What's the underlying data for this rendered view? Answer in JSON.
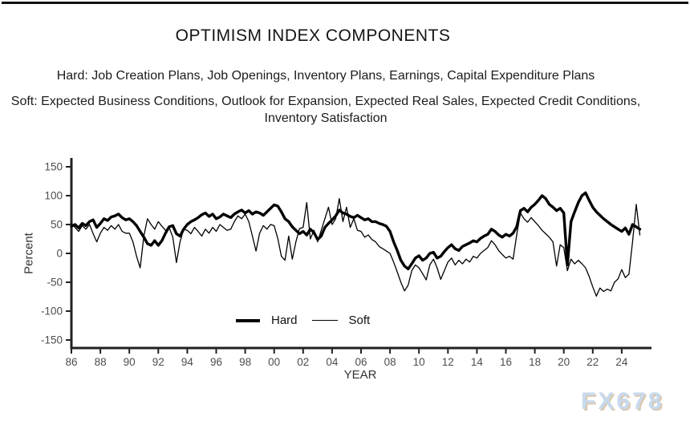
{
  "page": {
    "title": "OPTIMISM INDEX COMPONENTS",
    "subtitle_hard": "Hard: Job Creation Plans, Job Openings, Inventory Plans, Earnings, Capital Expenditure Plans",
    "subtitle_soft": "Soft: Expected Business Conditions, Outlook for Expansion, Expected Real Sales, Expected Credit Conditions, Inventory Satisfaction",
    "watermark": "FX678"
  },
  "chart_data": {
    "type": "line",
    "title": "OPTIMISM INDEX COMPONENTS",
    "xlabel": "YEAR",
    "ylabel": "Percent",
    "ylim": [
      -150,
      150
    ],
    "xlim": [
      1986,
      2025.6
    ],
    "grid": false,
    "legend_position": "bottom-center-inside",
    "line_color": "#000000",
    "axis_color": "#222222",
    "tick_label_color": "#4d4d4d",
    "y_ticks": [
      150,
      100,
      50,
      0,
      -50,
      -100,
      -150
    ],
    "x_ticks": [
      {
        "year": 1986,
        "label": "86"
      },
      {
        "year": 1988,
        "label": "88"
      },
      {
        "year": 1990,
        "label": "90"
      },
      {
        "year": 1992,
        "label": "92"
      },
      {
        "year": 1994,
        "label": "94"
      },
      {
        "year": 1996,
        "label": "96"
      },
      {
        "year": 1998,
        "label": "98"
      },
      {
        "year": 2000,
        "label": "00"
      },
      {
        "year": 2002,
        "label": "02"
      },
      {
        "year": 2004,
        "label": "04"
      },
      {
        "year": 2006,
        "label": "06"
      },
      {
        "year": 2008,
        "label": "08"
      },
      {
        "year": 2010,
        "label": "10"
      },
      {
        "year": 2012,
        "label": "12"
      },
      {
        "year": 2014,
        "label": "14"
      },
      {
        "year": 2016,
        "label": "16"
      },
      {
        "year": 2018,
        "label": "18"
      },
      {
        "year": 2020,
        "label": "20"
      },
      {
        "year": 2022,
        "label": "22"
      },
      {
        "year": 2024,
        "label": "24"
      }
    ],
    "x_start": 1986.0,
    "x_step": 0.25,
    "series": [
      {
        "name": "Soft",
        "stroke_width": 1.3,
        "values": [
          52,
          45,
          38,
          48,
          42,
          50,
          34,
          20,
          35,
          45,
          40,
          48,
          42,
          50,
          38,
          35,
          35,
          20,
          -5,
          -25,
          30,
          60,
          50,
          42,
          55,
          47,
          40,
          45,
          28,
          -16,
          20,
          42,
          40,
          34,
          45,
          38,
          30,
          42,
          35,
          45,
          38,
          50,
          45,
          40,
          42,
          55,
          65,
          60,
          68,
          55,
          30,
          4,
          35,
          48,
          42,
          50,
          48,
          26,
          -5,
          -12,
          30,
          -10,
          20,
          43,
          45,
          88,
          25,
          40,
          20,
          40,
          60,
          80,
          50,
          60,
          95,
          55,
          80,
          45,
          60,
          40,
          38,
          28,
          32,
          24,
          20,
          12,
          8,
          4,
          0,
          -15,
          -32,
          -50,
          -65,
          -55,
          -30,
          -20,
          -25,
          -35,
          -46,
          -20,
          -10,
          -25,
          -45,
          -30,
          -15,
          -8,
          -20,
          -12,
          -18,
          -10,
          -15,
          -5,
          -8,
          0,
          5,
          10,
          22,
          15,
          5,
          -2,
          -8,
          -5,
          -10,
          32,
          70,
          60,
          54,
          62,
          55,
          48,
          40,
          34,
          28,
          20,
          -22,
          15,
          10,
          -30,
          -10,
          -18,
          -12,
          -18,
          -25,
          -40,
          -58,
          -74,
          -60,
          -66,
          -62,
          -65,
          -50,
          -44,
          -28,
          -42,
          -36,
          20,
          85,
          32
        ]
      },
      {
        "name": "Hard",
        "stroke_width": 3.4,
        "values": [
          47,
          50,
          44,
          52,
          48,
          55,
          58,
          45,
          52,
          60,
          57,
          63,
          65,
          68,
          62,
          58,
          60,
          55,
          48,
          38,
          28,
          17,
          14,
          22,
          14,
          22,
          35,
          46,
          48,
          34,
          30,
          42,
          50,
          55,
          58,
          62,
          67,
          70,
          64,
          68,
          60,
          63,
          68,
          65,
          62,
          68,
          72,
          75,
          70,
          74,
          68,
          72,
          70,
          66,
          72,
          78,
          84,
          82,
          72,
          60,
          55,
          46,
          40,
          34,
          38,
          32,
          42,
          36,
          24,
          30,
          45,
          52,
          58,
          65,
          75,
          70,
          68,
          64,
          62,
          66,
          62,
          58,
          60,
          55,
          55,
          52,
          50,
          47,
          38,
          20,
          5,
          -12,
          -22,
          -27,
          -18,
          -8,
          -4,
          -12,
          -8,
          0,
          2,
          -8,
          -5,
          3,
          10,
          15,
          8,
          5,
          12,
          15,
          18,
          22,
          20,
          26,
          30,
          33,
          42,
          38,
          32,
          28,
          33,
          30,
          35,
          46,
          74,
          78,
          72,
          80,
          85,
          92,
          100,
          95,
          85,
          80,
          74,
          78,
          70,
          -20,
          55,
          72,
          88,
          100,
          105,
          92,
          80,
          72,
          66,
          60,
          55,
          50,
          46,
          42,
          38,
          44,
          33,
          50,
          46,
          42
        ]
      }
    ]
  }
}
